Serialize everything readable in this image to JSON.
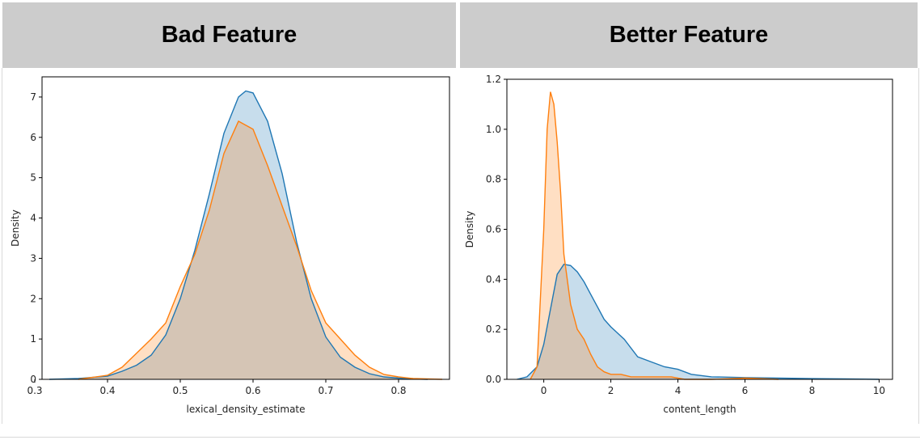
{
  "headers": {
    "left": "Bad Feature",
    "right": "Better Feature"
  },
  "colors": {
    "blue": "#1f77b4",
    "orange": "#ff7f0e"
  },
  "chart_data": [
    {
      "type": "area",
      "title": "Bad Feature",
      "xlabel": "lexical_density_estimate",
      "ylabel": "Density",
      "xlim": [
        0.31,
        0.87
      ],
      "ylim": [
        0,
        7.5
      ],
      "xticks": [
        0.3,
        0.4,
        0.5,
        0.6,
        0.7,
        0.8
      ],
      "xtick_labels": [
        "0.3",
        "0.4",
        "0.5",
        "0.6",
        "0.7",
        "0.8"
      ],
      "yticks": [
        0,
        1,
        2,
        3,
        4,
        5,
        6,
        7
      ],
      "ytick_labels": [
        "0",
        "1",
        "2",
        "3",
        "4",
        "5",
        "6",
        "7"
      ],
      "series": [
        {
          "name": "blue",
          "color": "#1f77b4",
          "x": [
            0.32,
            0.36,
            0.4,
            0.42,
            0.44,
            0.46,
            0.48,
            0.5,
            0.52,
            0.54,
            0.56,
            0.58,
            0.59,
            0.6,
            0.62,
            0.64,
            0.66,
            0.68,
            0.7,
            0.72,
            0.74,
            0.76,
            0.78,
            0.8,
            0.82,
            0.84
          ],
          "values": [
            0.0,
            0.02,
            0.08,
            0.2,
            0.35,
            0.6,
            1.1,
            2.0,
            3.2,
            4.6,
            6.1,
            7.0,
            7.15,
            7.1,
            6.4,
            5.1,
            3.4,
            2.0,
            1.05,
            0.55,
            0.3,
            0.14,
            0.06,
            0.03,
            0.01,
            0.0
          ]
        },
        {
          "name": "orange",
          "color": "#ff7f0e",
          "x": [
            0.36,
            0.4,
            0.42,
            0.44,
            0.46,
            0.48,
            0.5,
            0.52,
            0.54,
            0.56,
            0.58,
            0.6,
            0.62,
            0.64,
            0.66,
            0.68,
            0.7,
            0.72,
            0.74,
            0.76,
            0.78,
            0.8,
            0.82,
            0.84,
            0.86
          ],
          "values": [
            0.0,
            0.1,
            0.3,
            0.65,
            1.0,
            1.4,
            2.3,
            3.1,
            4.2,
            5.6,
            6.4,
            6.2,
            5.3,
            4.3,
            3.3,
            2.2,
            1.4,
            1.0,
            0.6,
            0.3,
            0.12,
            0.06,
            0.02,
            0.01,
            0.0
          ]
        }
      ]
    },
    {
      "type": "area",
      "title": "Better Feature",
      "xlabel": "content_length",
      "ylabel": "Density",
      "xlim": [
        -1.1,
        10.4
      ],
      "ylim": [
        0,
        1.2
      ],
      "xticks": [
        0,
        2,
        4,
        6,
        8,
        10
      ],
      "xtick_labels": [
        "0",
        "2",
        "4",
        "6",
        "8",
        "10"
      ],
      "yticks": [
        0,
        0.2,
        0.4,
        0.6,
        0.8,
        1.0,
        1.2
      ],
      "ytick_labels": [
        "0.0",
        "0.2",
        "0.4",
        "0.6",
        "0.8",
        "1.0",
        "1.2"
      ],
      "series": [
        {
          "name": "blue",
          "color": "#1f77b4",
          "x": [
            -0.8,
            -0.5,
            -0.2,
            0.0,
            0.2,
            0.4,
            0.6,
            0.8,
            1.0,
            1.2,
            1.4,
            1.6,
            1.8,
            2.0,
            2.4,
            2.8,
            3.2,
            3.6,
            4.0,
            4.4,
            5.0,
            6.0,
            7.0,
            8.0,
            9.0,
            10.0
          ],
          "values": [
            0.0,
            0.01,
            0.05,
            0.14,
            0.28,
            0.42,
            0.46,
            0.455,
            0.43,
            0.39,
            0.34,
            0.29,
            0.24,
            0.21,
            0.16,
            0.09,
            0.07,
            0.05,
            0.04,
            0.02,
            0.01,
            0.007,
            0.005,
            0.003,
            0.002,
            0.0
          ]
        },
        {
          "name": "orange",
          "color": "#ff7f0e",
          "x": [
            -0.4,
            -0.2,
            0.0,
            0.1,
            0.2,
            0.3,
            0.4,
            0.5,
            0.6,
            0.8,
            1.0,
            1.2,
            1.4,
            1.6,
            1.8,
            2.0,
            2.3,
            2.6,
            3.0,
            3.4,
            3.8,
            4.2,
            5.0,
            6.0,
            7.0
          ],
          "values": [
            0.0,
            0.05,
            0.6,
            1.0,
            1.15,
            1.1,
            0.95,
            0.75,
            0.5,
            0.3,
            0.2,
            0.16,
            0.1,
            0.05,
            0.03,
            0.02,
            0.02,
            0.01,
            0.01,
            0.01,
            0.01,
            0.0,
            0.0,
            0.005,
            0.0
          ]
        }
      ]
    }
  ]
}
